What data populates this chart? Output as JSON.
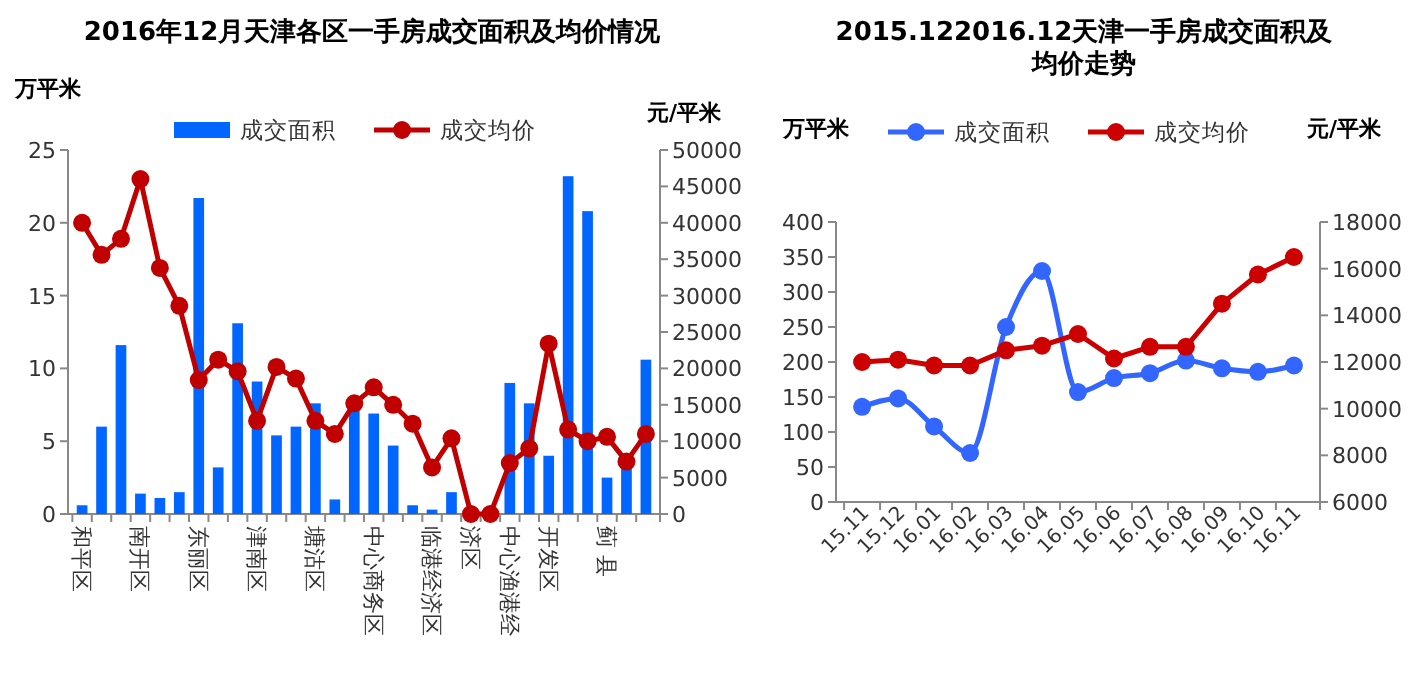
{
  "chart_data": [
    {
      "type": "bar",
      "title": "2016年12月天津各区一手房成交面积及均价情况",
      "ylabel": "万平米",
      "y2label": "元/平米",
      "legend": "top",
      "marker": "circle",
      "line_style": "solid",
      "grid": false,
      "categories": [
        "和平区",
        null,
        null,
        "南开区",
        null,
        null,
        "东丽区",
        null,
        null,
        "津南区",
        null,
        null,
        "塘沽区",
        null,
        null,
        "中心商务区",
        null,
        null,
        "临港经济区",
        null,
        "济区",
        null,
        "中心渔港经",
        null,
        "开发区",
        null,
        null,
        "蓟 县",
        null,
        null
      ],
      "series": [
        {
          "name": "成交面积",
          "type": "bar",
          "color": "#0066ff",
          "values": [
            0.6,
            6.0,
            11.6,
            1.4,
            1.1,
            1.5,
            21.7,
            3.2,
            13.1,
            9.1,
            5.4,
            6.0,
            7.6,
            1.0,
            7.2,
            6.9,
            4.7,
            0.6,
            0.3,
            1.5,
            0,
            0,
            9.0,
            7.6,
            4.0,
            23.2,
            20.8,
            2.5,
            3.5,
            10.6
          ]
        },
        {
          "name": "成交均价",
          "type": "line",
          "axis": "y2",
          "color": "#c00000",
          "values": [
            40000,
            35600,
            37800,
            46000,
            33800,
            28600,
            18400,
            21200,
            19600,
            12800,
            20200,
            18600,
            12800,
            11000,
            15200,
            17400,
            15000,
            12400,
            6400,
            10400,
            0,
            0,
            7000,
            9000,
            23400,
            11600,
            10000,
            10600,
            7200,
            11000
          ]
        }
      ],
      "ylim": [
        0,
        25
      ],
      "yticks": [
        0,
        5,
        10,
        15,
        20,
        25
      ],
      "y2lim": [
        0,
        50000
      ],
      "y2ticks": [
        0,
        5000,
        10000,
        15000,
        20000,
        25000,
        30000,
        35000,
        40000,
        45000,
        50000
      ]
    },
    {
      "type": "line",
      "title": "2015.122016.12天津一手房成交面积及均价走势",
      "ylabel": "万平米",
      "y2label": "元/平米",
      "legend": "top",
      "marker": "circle",
      "line_style": "solid",
      "grid": false,
      "categories": [
        "15.11",
        "15.12",
        "16.01",
        "16.02",
        "16.03",
        "16.04",
        "16.05",
        "16.06",
        "16.07",
        "16.08",
        "16.09",
        "16.10",
        "16.11"
      ],
      "series": [
        {
          "name": "成交面积",
          "type": "line",
          "color": "#3366ff",
          "values": [
            136,
            148,
            108,
            70,
            250,
            330,
            157,
            177,
            184,
            202,
            191,
            186,
            195
          ]
        },
        {
          "name": "成交均价",
          "type": "line",
          "axis": "y2",
          "color": "#cc0000",
          "values": [
            12000,
            12100,
            11850,
            11850,
            12500,
            12700,
            13200,
            12150,
            12650,
            12650,
            14500,
            15750,
            16500
          ]
        }
      ],
      "ylim": [
        0,
        400
      ],
      "yticks": [
        0,
        50,
        100,
        150,
        200,
        250,
        300,
        350,
        400
      ],
      "y2lim": [
        6000,
        18000
      ],
      "y2ticks": [
        6000,
        8000,
        10000,
        12000,
        14000,
        16000,
        18000
      ]
    }
  ]
}
